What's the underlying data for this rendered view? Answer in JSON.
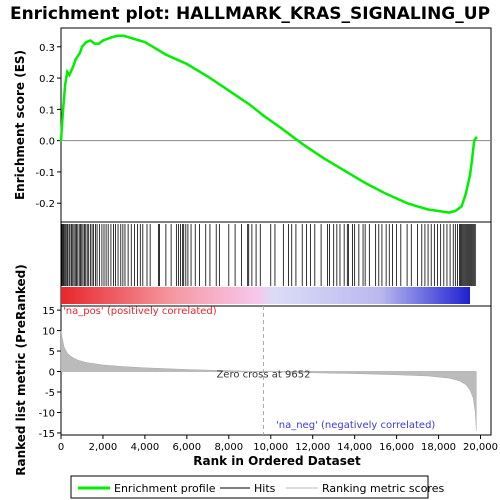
{
  "chart_data": {
    "type": "line",
    "title": "Enrichment plot: HALLMARK_KRAS_SIGNALING_UP",
    "xlabel": "Rank in Ordered Dataset",
    "x_range": [
      0,
      20500
    ],
    "x_ticks": [
      "0",
      "2,000",
      "4,000",
      "6,000",
      "8,000",
      "10,000",
      "12,000",
      "14,000",
      "16,000",
      "18,000",
      "20,000"
    ],
    "x_tick_values": [
      0,
      2000,
      4000,
      6000,
      8000,
      10000,
      12000,
      14000,
      16000,
      18000,
      20000
    ],
    "enrichment_panel": {
      "ylabel": "Enrichment score (ES)",
      "ylim": [
        -0.26,
        0.36
      ],
      "y_ticks": [
        "0.3",
        "0.2",
        "0.1",
        "0.0",
        "-0.1",
        "-0.2"
      ],
      "y_tick_values": [
        0.3,
        0.2,
        0.1,
        0.0,
        -0.1,
        -0.2
      ],
      "series_color": "#00ee00",
      "series": [
        {
          "name": "Enrichment profile",
          "x": [
            0,
            100,
            200,
            300,
            400,
            600,
            700,
            900,
            1000,
            1200,
            1400,
            1600,
            1800,
            2000,
            2200,
            2400,
            2700,
            3000,
            3500,
            4000,
            4500,
            5000,
            5500,
            6000,
            7000,
            8000,
            9000,
            9652,
            10500,
            11500,
            12500,
            13500,
            14500,
            15500,
            16500,
            17000,
            17500,
            18000,
            18500,
            18800,
            19100,
            19300,
            19500,
            19600,
            19700,
            19800
          ],
          "y": [
            0.0,
            0.1,
            0.18,
            0.22,
            0.21,
            0.24,
            0.26,
            0.28,
            0.3,
            0.315,
            0.32,
            0.31,
            0.31,
            0.32,
            0.325,
            0.33,
            0.335,
            0.335,
            0.325,
            0.315,
            0.295,
            0.275,
            0.26,
            0.245,
            0.205,
            0.16,
            0.115,
            0.08,
            0.04,
            -0.01,
            -0.055,
            -0.095,
            -0.135,
            -0.17,
            -0.2,
            -0.21,
            -0.22,
            -0.225,
            -0.23,
            -0.225,
            -0.21,
            -0.17,
            -0.11,
            -0.06,
            0.0,
            0.01
          ]
        }
      ],
      "zero_line": 0.0
    },
    "hits_panel": {
      "hit_ranks": [
        30,
        70,
        110,
        150,
        200,
        250,
        310,
        380,
        430,
        500,
        560,
        620,
        680,
        740,
        800,
        870,
        930,
        990,
        1050,
        1120,
        1180,
        1250,
        1320,
        1400,
        1480,
        1550,
        1640,
        1720,
        1830,
        1950,
        2050,
        2150,
        2250,
        2380,
        2500,
        2600,
        2720,
        2850,
        2950,
        3050,
        3200,
        3350,
        3500,
        3650,
        3780,
        3900,
        4100,
        4250,
        4650,
        4700,
        5000,
        5250,
        5500,
        5600,
        5700,
        5800,
        5850,
        5950,
        6050,
        6200,
        6400,
        6600,
        6900,
        7100,
        7400,
        7550,
        8000,
        8300,
        8600,
        8900,
        8950,
        9100,
        9300,
        9500,
        10000,
        10200,
        10600,
        10850,
        11000,
        11200,
        11500,
        11700,
        11900,
        12100,
        12400,
        12700,
        12800,
        13000,
        13150,
        13300,
        13500,
        13650,
        13700,
        13900,
        14000,
        14200,
        14400,
        14500,
        14700,
        15000,
        15150,
        15300,
        15500,
        15650,
        15800,
        16000,
        16200,
        16500,
        16700,
        17000,
        17200,
        17350,
        17500,
        17650,
        17800,
        17950,
        18100,
        18250,
        18400,
        18550,
        18700,
        18800,
        18900,
        19000,
        19050,
        19100,
        19150,
        19200,
        19250,
        19300,
        19350,
        19400,
        19450,
        19500,
        19550,
        19600,
        19650,
        19700,
        19750
      ]
    },
    "ranking_panel": {
      "ylabel": "Ranked list metric (PreRanked)",
      "ylim": [
        -15.5,
        16
      ],
      "y_ticks": [
        "15",
        "10",
        "5",
        "0",
        "-5",
        "-10",
        "-15"
      ],
      "y_tick_values": [
        15,
        10,
        5,
        0,
        -5,
        -10,
        -15
      ],
      "metric_x": [
        0,
        50,
        150,
        300,
        500,
        800,
        1200,
        2000,
        3000,
        4000,
        6000,
        8000,
        9652,
        12000,
        14000,
        16000,
        17500,
        18500,
        19000,
        19300,
        19500,
        19650,
        19750,
        19800
      ],
      "metric_y": [
        10.0,
        8.5,
        6.0,
        4.5,
        3.6,
        2.8,
        2.2,
        1.6,
        1.2,
        0.9,
        0.5,
        0.2,
        0.0,
        -0.3,
        -0.5,
        -0.8,
        -1.1,
        -1.6,
        -2.3,
        -3.2,
        -4.5,
        -6.5,
        -10.0,
        -14.5
      ],
      "zero_cross_rank": 9652,
      "zero_cross_label": "Zero cross at 9652",
      "pos_label": "'na_pos' (positively correlated)",
      "neg_label": "'na_neg' (negatively correlated)",
      "pos_color": "#e8262b",
      "neg_color": "#3a3ad6"
    },
    "legend": {
      "placement": "bottom",
      "entries": [
        {
          "label": "Enrichment profile",
          "color": "#00ee00"
        },
        {
          "label": "Hits",
          "color": "#000000"
        },
        {
          "label": "Ranking metric scores",
          "color": "#bbbbbb"
        }
      ]
    }
  }
}
